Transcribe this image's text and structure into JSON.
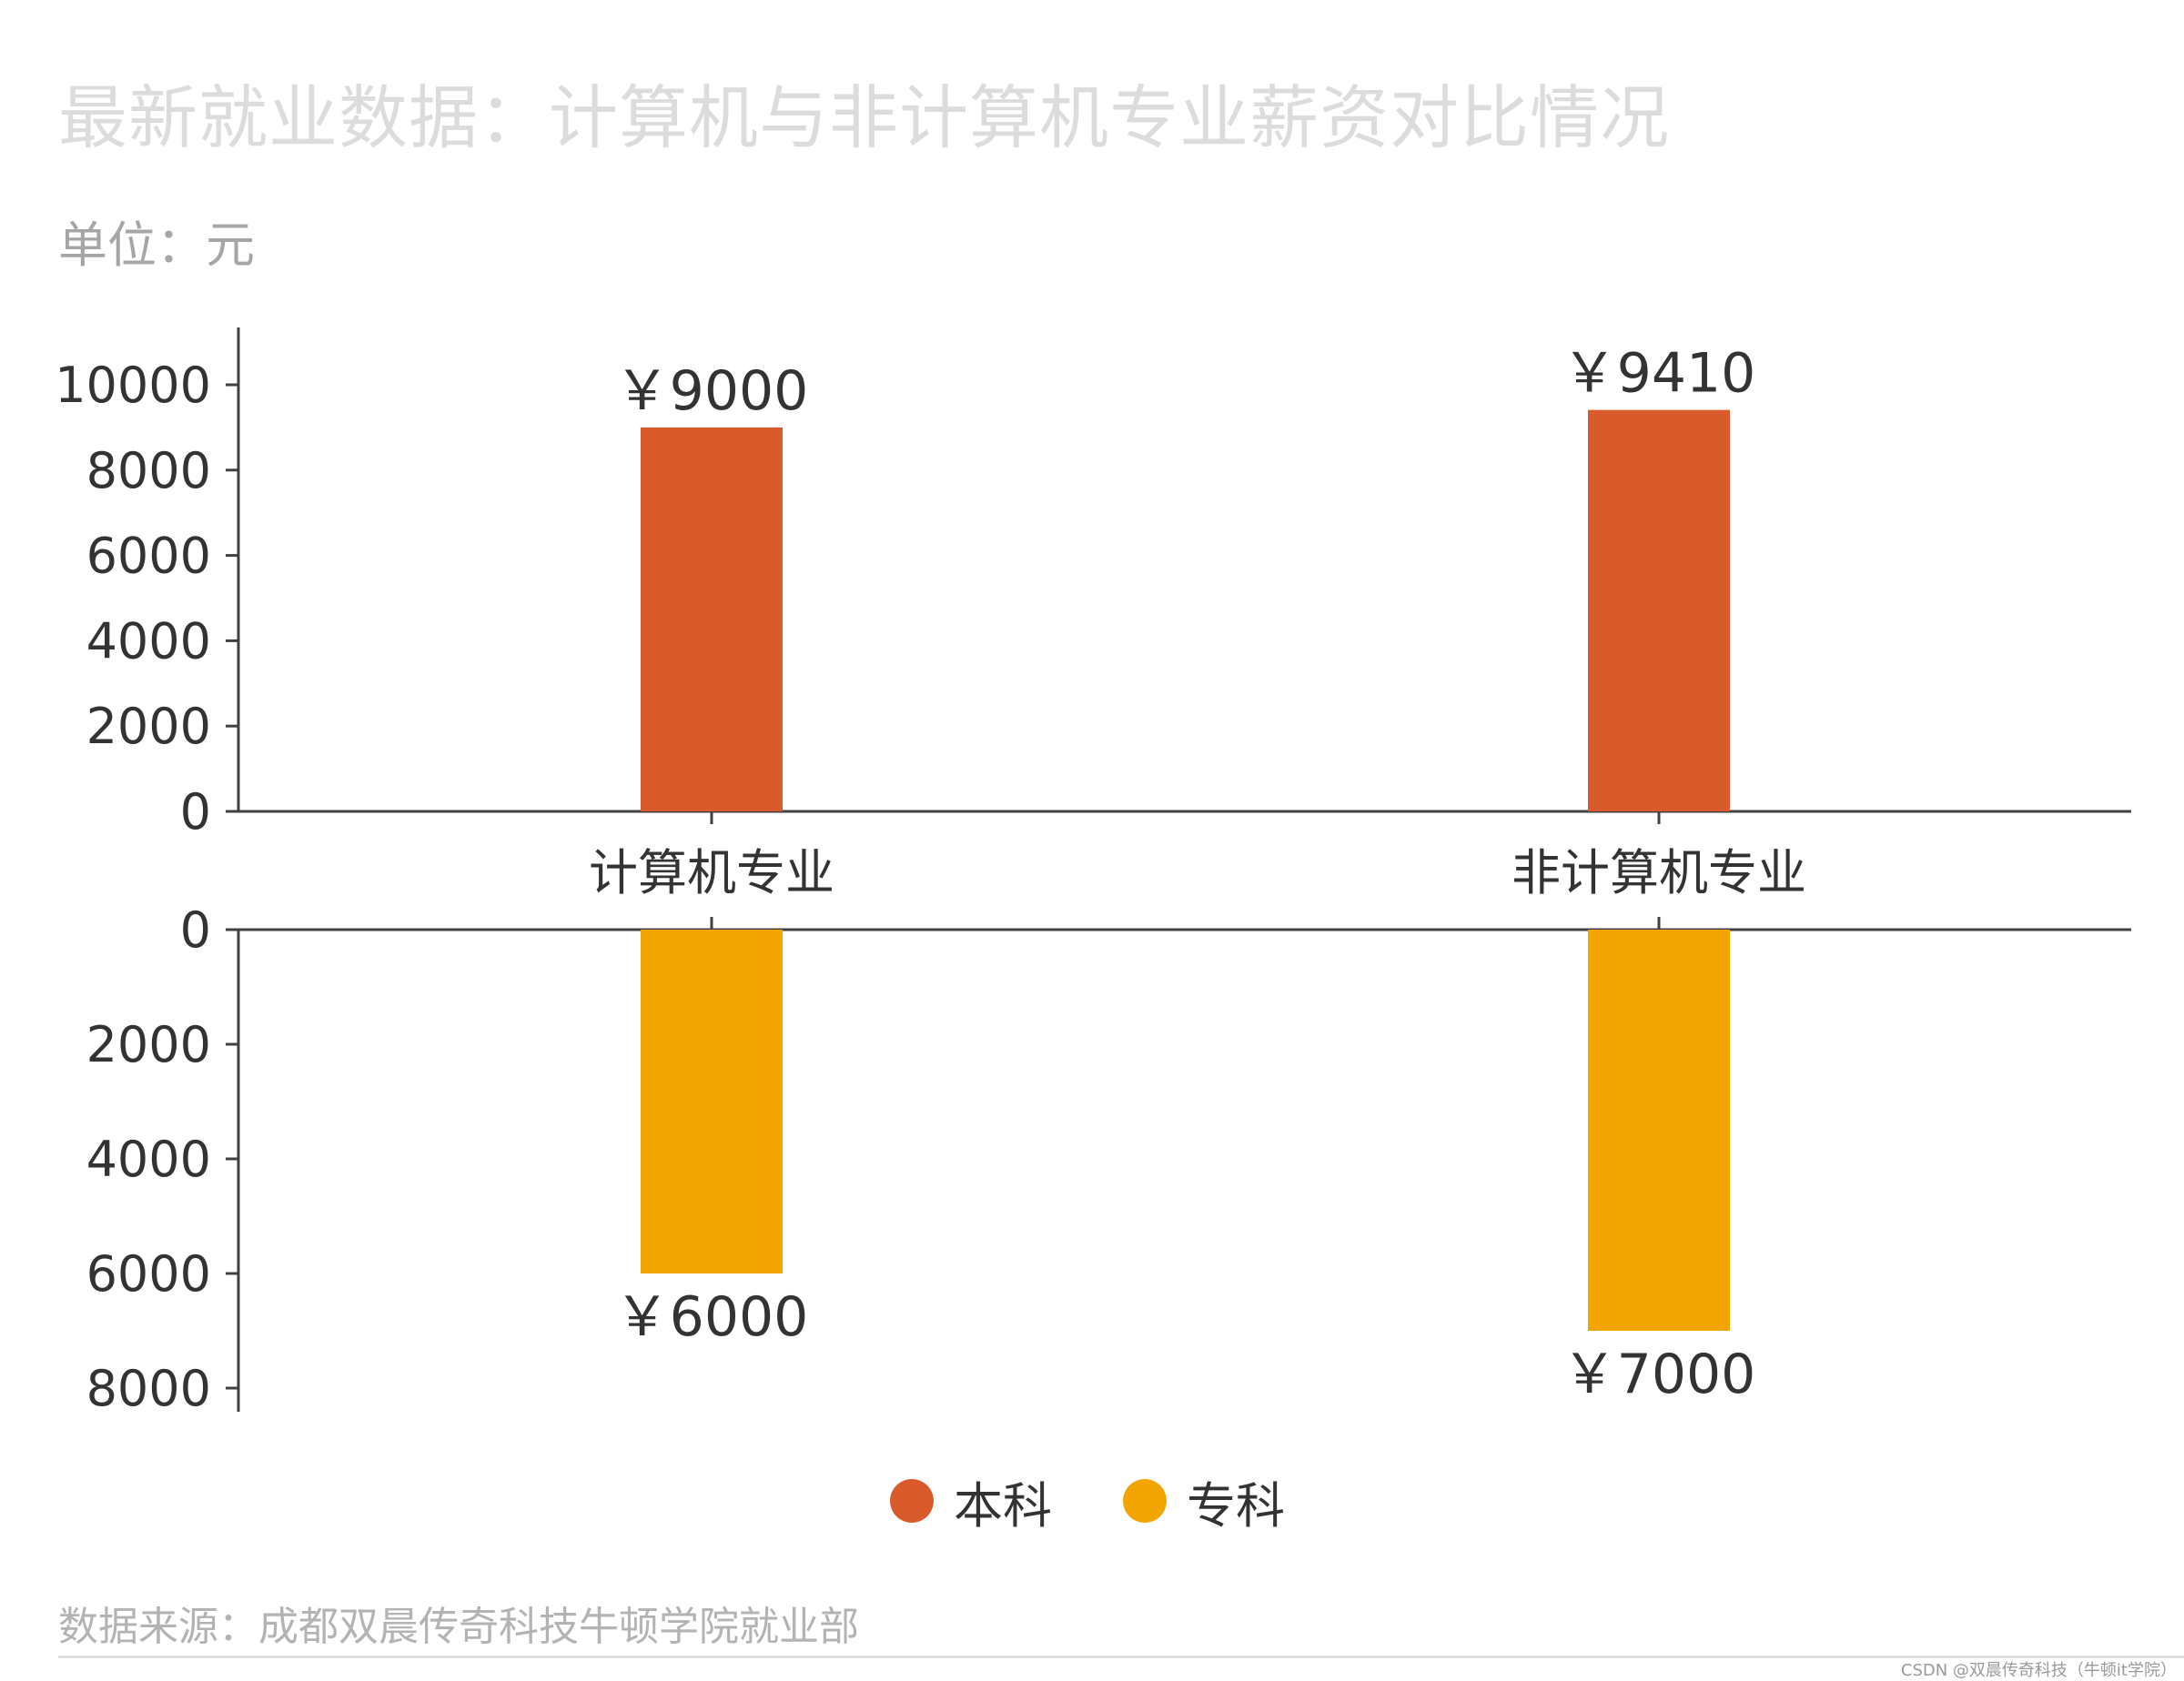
{
  "title": "最新就业数据：计算机与非计算机专业薪资对比情况",
  "unit": "单位：元",
  "source": "数据来源：成都双晨传奇科技牛顿学院就业部",
  "watermark": "CSDN @双晨传奇科技（牛顿it学院）",
  "colors": {
    "bachelor": "#d95b2b",
    "associate": "#f2a400",
    "axis": "#404040",
    "text": "#333333"
  },
  "legend": [
    {
      "label": "本科",
      "color": "#d95b2b"
    },
    {
      "label": "专科",
      "color": "#f2a400"
    }
  ],
  "chart_data": {
    "type": "bar",
    "categories": [
      "计算机专业",
      "非计算机专业"
    ],
    "series": [
      {
        "name": "本科",
        "values": [
          9000,
          9410
        ],
        "value_labels": [
          "￥9000",
          "￥9410"
        ],
        "direction": "up",
        "yticks": [
          "0",
          "2000",
          "4000",
          "6000",
          "8000",
          "10000"
        ],
        "ylim": [
          0,
          11500
        ]
      },
      {
        "name": "专科",
        "values": [
          6000,
          7000
        ],
        "value_labels": [
          "￥6000",
          "￥7000"
        ],
        "direction": "down",
        "yticks": [
          "0",
          "2000",
          "4000",
          "6000",
          "8000"
        ],
        "ylim": [
          0,
          8400
        ]
      }
    ],
    "grid": false,
    "legend_position": "bottom-center"
  }
}
